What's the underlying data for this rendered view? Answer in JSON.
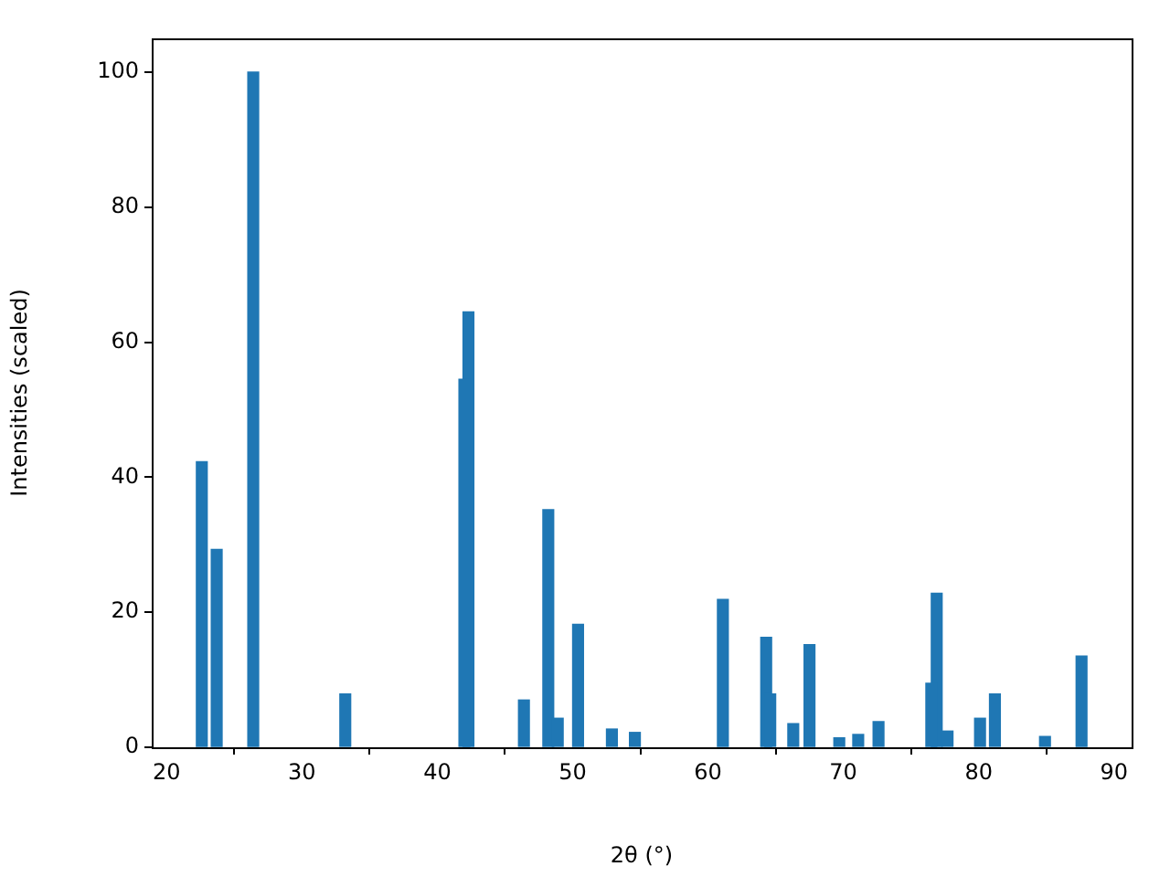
{
  "chart_data": {
    "type": "bar",
    "xlabel": "2θ (°)",
    "ylabel": "Intensities (scaled)",
    "x": [
      22.6,
      23.7,
      26.4,
      33.2,
      42.0,
      42.3,
      46.4,
      48.2,
      48.9,
      50.4,
      52.9,
      54.6,
      61.1,
      64.3,
      64.6,
      66.3,
      67.5,
      69.7,
      71.1,
      72.6,
      76.5,
      76.9,
      77.7,
      80.1,
      81.2,
      84.9,
      87.6
    ],
    "series": [
      {
        "color": "#1f77b4",
        "values": [
          42.3,
          29.3,
          100,
          7.9,
          54.5,
          64.5,
          7.0,
          35.2,
          4.3,
          18.2,
          2.7,
          2.2,
          21.9,
          16.3,
          7.9,
          3.5,
          15.2,
          1.4,
          1.9,
          3.8,
          9.5,
          22.8,
          2.4,
          4.3,
          7.9,
          1.6,
          13.5
        ]
      }
    ],
    "xlim": [
      18.9,
      91.3
    ],
    "xticks": [
      20,
      30,
      40,
      50,
      60,
      70,
      80,
      90
    ],
    "ylim": [
      0,
      105
    ],
    "yticks": [
      0,
      20,
      40,
      60,
      80,
      100
    ],
    "legend": false
  }
}
